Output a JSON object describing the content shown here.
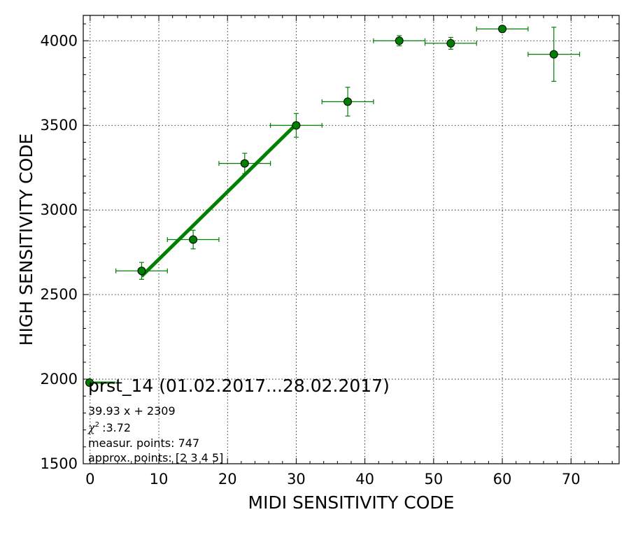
{
  "chart_data": {
    "type": "scatter",
    "xlabel": "MIDI SENSITIVITY CODE",
    "ylabel": "HIGH SENSITIVITY CODE",
    "xlim": [
      -1,
      77
    ],
    "ylim": [
      1500,
      4150
    ],
    "xticks": [
      0,
      10,
      20,
      30,
      40,
      50,
      60,
      70
    ],
    "yticks": [
      1500,
      2000,
      2500,
      3000,
      3500,
      4000
    ],
    "xtick_labels": [
      "0",
      "10",
      "20",
      "30",
      "40",
      "50",
      "60",
      "70"
    ],
    "ytick_labels": [
      "1500",
      "2000",
      "2500",
      "3000",
      "3500",
      "4000"
    ],
    "grid": true,
    "colors": {
      "series": "#008000",
      "fit": "#008000",
      "marker_edge": "#000000"
    },
    "series": [
      {
        "points": [
          {
            "x": 7.5,
            "y": 2640,
            "xerr": 3.75,
            "yerr": 50
          },
          {
            "x": 15,
            "y": 2825,
            "xerr": 3.75,
            "yerr": 55
          },
          {
            "x": 22.5,
            "y": 3275,
            "xerr": 3.75,
            "yerr": 60
          },
          {
            "x": 30,
            "y": 3500,
            "xerr": 3.75,
            "yerr": 70
          },
          {
            "x": 37.5,
            "y": 3640,
            "xerr": 3.75,
            "yerr": 85
          },
          {
            "x": 45,
            "y": 4000,
            "xerr": 3.75,
            "yerr": 30
          },
          {
            "x": 52.5,
            "y": 3985,
            "xerr": 3.75,
            "yerr": 35
          },
          {
            "x": 60,
            "y": 4070,
            "xerr": 3.75,
            "yerr": 10
          },
          {
            "x": 67.5,
            "y": 3920,
            "xerr": 3.75,
            "yerr": 160
          }
        ]
      }
    ],
    "fit": {
      "slope": 39.93,
      "intercept": 2309,
      "x_from": 7.5,
      "x_to": 30
    },
    "legend": {
      "title": "prst_14 (01.02.2017...28.02.2017)",
      "lines": [
        "39.93 x + 2309",
        ":3.72",
        "measur. points: 747",
        "approx. points: [2 3 4 5]"
      ],
      "chi_symbol": "χ",
      "chi_sup": "2"
    }
  }
}
